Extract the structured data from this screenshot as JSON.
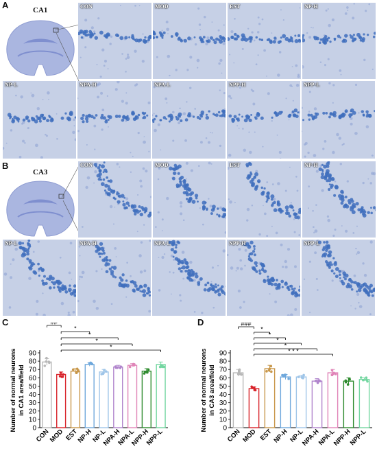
{
  "panels": {
    "A": {
      "label": "A",
      "region": "CA1"
    },
    "B": {
      "label": "B",
      "region": "CA3"
    },
    "C": {
      "label": "C"
    },
    "D": {
      "label": "D"
    }
  },
  "micro_tiles": {
    "A_row1": [
      "CON",
      "MOD",
      "EST",
      "NP-H"
    ],
    "A_row2": [
      "NP-L",
      "NPA-H",
      "NPA-L",
      "NPP-H",
      "NPP-L"
    ],
    "B_row1": [
      "CON",
      "MOD",
      "EST",
      "NP-H"
    ],
    "B_row2": [
      "NP-L",
      "NPA-H",
      "NPA-L",
      "NPP-H",
      "NPP-L"
    ]
  },
  "colors": {
    "tile_bg": "#c6d0e6",
    "stain": "#3f6fbd",
    "CON": "#b8b8b8",
    "MOD": "#d8232a",
    "EST": "#c8974a",
    "NP-H": "#6fa8dc",
    "NP-L": "#9fc5e8",
    "NPA-H": "#b084cc",
    "NPA-L": "#e085b8",
    "NPP-H": "#2e8b2e",
    "NPP-L": "#73d6a0"
  },
  "chart_data": [
    {
      "type": "bar",
      "panel": "C",
      "categories": [
        "CON",
        "MOD",
        "EST",
        "NP-H",
        "NP-L",
        "NPA-H",
        "NPA-L",
        "NPP-H",
        "NPP-L"
      ],
      "values": [
        79,
        64,
        68,
        76,
        67,
        73,
        75,
        68,
        76
      ],
      "errors": [
        4,
        3,
        3,
        2,
        3,
        2,
        2,
        3,
        3
      ],
      "ylabel": "Number of normal neurons\nin CA1 area/field",
      "ylim": [
        0,
        90
      ],
      "yticks": [
        0,
        10,
        20,
        30,
        40,
        50,
        60,
        70,
        80,
        90
      ],
      "significance": [
        {
          "from": "CON",
          "to": "MOD",
          "label": "##"
        },
        {
          "from": "MOD",
          "to": "NP-H",
          "label": "*"
        },
        {
          "from": "MOD",
          "to": "NPA-H",
          "label": "*"
        },
        {
          "from": "MOD",
          "to": "NPA-L",
          "label": "*"
        },
        {
          "from": "MOD",
          "to": "NPP-L",
          "label": "*"
        }
      ]
    },
    {
      "type": "bar",
      "panel": "D",
      "categories": [
        "CON",
        "MOD",
        "EST",
        "NP-H",
        "NP-L",
        "NPA-H",
        "NPA-L",
        "NPP-H",
        "NPP-L"
      ],
      "values": [
        66,
        47,
        71,
        61,
        61,
        56,
        66,
        56,
        58
      ],
      "errors": [
        4,
        2,
        4,
        3,
        2,
        3,
        4,
        4,
        2
      ],
      "ylabel": "Number of normal neurons\nin CA3 area/field",
      "ylim": [
        0,
        90
      ],
      "yticks": [
        0,
        10,
        20,
        30,
        40,
        50,
        60,
        70,
        80,
        90
      ],
      "significance": [
        {
          "from": "CON",
          "to": "MOD",
          "label": "###"
        },
        {
          "from": "MOD",
          "to": "EST",
          "label": "*"
        },
        {
          "from": "MOD",
          "to": "NP-H",
          "label": "*"
        },
        {
          "from": "MOD",
          "to": "NP-L",
          "label": "*"
        },
        {
          "from": "MOD",
          "to": "NPA-H",
          "label": "*"
        },
        {
          "from": "MOD",
          "to": "NPA-L",
          "label": "* * *"
        }
      ]
    }
  ]
}
